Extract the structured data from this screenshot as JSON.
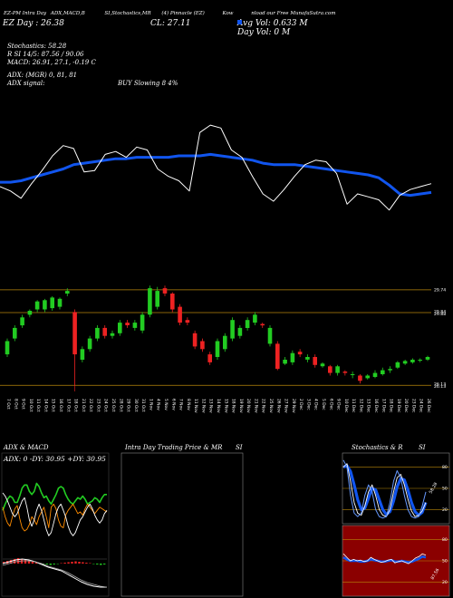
{
  "header": {
    "line1": [
      "EZ-PM Intra Day",
      "ADX,MACD,B",
      "SI,Stochastics,MR",
      "(4) Pinnacle (EZ)",
      "Kow",
      "nload our Free MunafaSutra.com"
    ],
    "line2_left": "EZ  Day : 26.38",
    "line2_mid": "CL: 27.11",
    "line2_right": "Avg Vol: 0.633 M",
    "line3_right": "Day Vol: 0   M"
  },
  "indicators": {
    "stoch": "Stochastics: 58.28",
    "rsi": "R        SI 14/5: 87.56  / 90.06",
    "macd": "MACD: 26.91, 27.1, -0.19 C",
    "adx": "ADX:                       (MGR) 0, 81, 81",
    "adx_signal": "ADX  signal:",
    "buy": "BUY Slowing 8 4%"
  },
  "colors": {
    "up": "#22cc22",
    "down": "#ee2222",
    "ma": "#1155ee",
    "price": "#ffffff",
    "level": "#b8860b",
    "stoch_bg": "#000000",
    "rsi_bg": "#8b0000"
  },
  "chart_data": [
    {
      "type": "line",
      "name": "top-overlay",
      "series": [
        {
          "values": [
            27.8,
            27.5,
            27.0,
            28.0,
            28.9,
            29.9,
            30.6,
            30.4,
            28.8,
            28.9,
            30.0,
            30.2,
            29.8,
            30.5,
            30.3,
            29.0,
            28.5,
            28.2,
            27.5,
            31.5,
            32.0,
            31.8,
            30.3,
            29.8,
            28.5,
            27.3,
            26.8,
            27.6,
            28.5,
            29.3,
            29.6,
            29.5,
            28.7,
            26.6,
            27.3,
            27.1,
            26.9,
            26.2,
            27.2,
            27.6,
            27.8,
            28.0
          ]
        },
        {
          "values": [
            28.1,
            28.1,
            28.2,
            28.4,
            28.6,
            28.8,
            29.0,
            29.3,
            29.4,
            29.5,
            29.6,
            29.7,
            29.7,
            29.8,
            29.8,
            29.8,
            29.8,
            29.9,
            29.9,
            29.9,
            30.0,
            29.9,
            29.8,
            29.7,
            29.6,
            29.4,
            29.3,
            29.3,
            29.3,
            29.2,
            29.1,
            29.0,
            28.9,
            28.8,
            28.7,
            28.6,
            28.4,
            27.9,
            27.3,
            27.2,
            27.3,
            27.4
          ]
        }
      ]
    },
    {
      "type": "candlestick",
      "name": "price",
      "ylim": [
        25.9,
        30.25
      ],
      "levels": [
        28.88,
        29.74,
        26.13
      ],
      "right_ticks": [
        "29.88",
        "29.84",
        "29.74",
        "26.13",
        "26.13"
      ],
      "x": [
        "7 Oct",
        "8 Oct",
        "9 Oct",
        "10 Oct",
        "11 Oct",
        "14 Oct",
        "15 Oct",
        "16 Oct",
        "17 Oct",
        "18 Oct",
        "21 Oct",
        "22 Oct",
        "23 Oct",
        "24 Oct",
        "25 Oct",
        "28 Oct",
        "29 Oct",
        "30 Oct",
        "31 Oct",
        "1 Nov",
        "4 Nov",
        "5 Nov",
        "6 Nov",
        "7 Nov",
        "8 Nov",
        "11 Nov",
        "12 Nov",
        "13 Nov",
        "14 Nov",
        "15 Nov",
        "18 Nov",
        "19 Nov",
        "20 Nov",
        "21 Nov",
        "22 Nov",
        "25 Nov",
        "26 Nov",
        "27 Nov",
        "29 Nov",
        "2 Dec",
        "3 Dec",
        "4 Dec",
        "5 Dec",
        "6 Dec",
        "9 Dec",
        "10 Dec",
        "11 Dec",
        "12 Dec",
        "13 Dec",
        "16 Dec",
        "17 Dec",
        "18 Dec",
        "19 Dec",
        "20 Dec",
        "23 Dec",
        "24 Dec",
        "26 Dec"
      ],
      "open": [
        27.3,
        27.9,
        28.4,
        28.8,
        29.0,
        29.0,
        29.05,
        29.1,
        29.6,
        28.9,
        27.1,
        27.5,
        27.9,
        28.3,
        28.0,
        28.1,
        28.5,
        28.3,
        28.2,
        28.8,
        29.1,
        29.8,
        29.6,
        29.1,
        28.6,
        28.1,
        27.8,
        27.3,
        27.2,
        27.5,
        27.9,
        28.0,
        28.3,
        28.5,
        28.45,
        27.7,
        27.7,
        26.95,
        27.0,
        27.4,
        27.1,
        27.2,
        26.85,
        26.85,
        26.6,
        26.65,
        26.55,
        26.5,
        26.4,
        26.45,
        26.55,
        26.7,
        26.8,
        26.95,
        27.0,
        27.1,
        27.1
      ],
      "close": [
        27.8,
        28.3,
        28.7,
        28.95,
        29.3,
        29.35,
        29.45,
        29.4,
        29.7,
        27.3,
        27.5,
        27.9,
        28.3,
        28.0,
        28.1,
        28.5,
        28.4,
        28.5,
        28.8,
        29.8,
        29.7,
        29.6,
        29.0,
        28.5,
        28.5,
        27.6,
        27.5,
        27.0,
        27.8,
        28.0,
        28.6,
        28.3,
        28.6,
        28.8,
        28.4,
        28.3,
        26.75,
        27.1,
        27.35,
        27.3,
        27.2,
        26.9,
        26.95,
        26.6,
        26.85,
        26.6,
        26.55,
        26.3,
        26.5,
        26.6,
        26.7,
        26.75,
        27.0,
        27.05,
        27.1,
        27.1,
        27.2
      ],
      "high": [
        27.9,
        28.4,
        28.8,
        29.0,
        29.35,
        29.4,
        29.5,
        29.45,
        29.8,
        29.0,
        27.6,
        28.0,
        28.4,
        28.4,
        28.2,
        28.6,
        28.6,
        28.6,
        28.9,
        29.9,
        29.85,
        29.9,
        29.65,
        29.2,
        28.7,
        28.2,
        27.9,
        27.4,
        27.9,
        28.1,
        28.7,
        28.4,
        28.7,
        28.9,
        28.5,
        28.4,
        27.8,
        27.2,
        27.45,
        27.5,
        27.3,
        27.3,
        27.0,
        26.9,
        26.9,
        26.7,
        26.65,
        26.55,
        26.55,
        26.7,
        26.8,
        26.85,
        27.05,
        27.1,
        27.15,
        27.15,
        27.25
      ],
      "low": [
        27.2,
        27.8,
        28.3,
        28.7,
        28.9,
        28.9,
        28.95,
        29.0,
        29.5,
        26.1,
        27.0,
        27.4,
        27.8,
        27.9,
        27.9,
        28.0,
        28.3,
        28.2,
        28.1,
        28.7,
        29.0,
        29.5,
        28.9,
        28.4,
        28.4,
        27.5,
        27.4,
        26.9,
        27.1,
        27.4,
        27.8,
        27.9,
        28.2,
        28.4,
        28.3,
        27.6,
        26.7,
        26.9,
        26.9,
        27.2,
        27.0,
        26.8,
        26.8,
        26.5,
        26.5,
        26.5,
        26.4,
        26.2,
        26.35,
        26.4,
        26.5,
        26.6,
        26.75,
        26.9,
        26.95,
        27.0,
        27.05
      ]
    },
    {
      "type": "line",
      "name": "adx-macd",
      "title": "ADX  & MACD",
      "readout": "ADX: 0  -DY: 30.95  +DY: 30.95",
      "series": [
        {
          "values": [
            26,
            30,
            33,
            35,
            34,
            31,
            31,
            35,
            40,
            42,
            42,
            38,
            36,
            38,
            43,
            41,
            37,
            34,
            35,
            32,
            30,
            33,
            36,
            40,
            41,
            40,
            36,
            33,
            31,
            30,
            32,
            34,
            33,
            35,
            33,
            30,
            31,
            32,
            34,
            33,
            31,
            34,
            36,
            36
          ]
        },
        {
          "values": [
            28,
            22,
            18,
            16,
            22,
            27,
            29,
            21,
            15,
            13,
            14,
            17,
            22,
            20,
            17,
            22,
            25,
            28,
            22,
            15,
            28,
            30,
            27,
            20,
            16,
            15,
            23,
            26,
            28,
            30,
            27,
            24,
            25,
            23,
            27,
            30,
            28,
            26,
            24,
            26,
            28,
            27,
            26,
            25
          ]
        },
        {
          "values": [
            37,
            35,
            32,
            28,
            24,
            22,
            24,
            28,
            32,
            34,
            28,
            20,
            16,
            20,
            26,
            30,
            26,
            20,
            14,
            10,
            12,
            18,
            24,
            28,
            30,
            26,
            22,
            16,
            12,
            10,
            12,
            16,
            20,
            22,
            25,
            28,
            30,
            27,
            23,
            20,
            18,
            20,
            24,
            26
          ]
        }
      ]
    },
    {
      "type": "bar",
      "name": "intraday",
      "title": "Intra  Day Trading Price  & MR",
      "title_right": "SI",
      "values": []
    },
    {
      "type": "line",
      "name": "stochastics",
      "title": "Stochastics & R",
      "title_right": "SI",
      "ylim": [
        0,
        100
      ],
      "tick_labels": [
        "80",
        "50",
        "20"
      ],
      "readout": "58.28",
      "series": [
        {
          "values": [
            90,
            80,
            40,
            15,
            10,
            15,
            40,
            55,
            45,
            20,
            10,
            8,
            10,
            30,
            60,
            75,
            65,
            40,
            20,
            10,
            8,
            10,
            25,
            45
          ]
        },
        {
          "values": [
            80,
            85,
            60,
            30,
            15,
            12,
            25,
            45,
            55,
            40,
            20,
            12,
            10,
            20,
            45,
            65,
            70,
            55,
            35,
            18,
            10,
            12,
            18,
            30
          ]
        },
        {
          "values": [
            80,
            82,
            74,
            55,
            34,
            20,
            22,
            36,
            50,
            48,
            34,
            20,
            13,
            17,
            32,
            52,
            64,
            62,
            48,
            30,
            17,
            12,
            16,
            30
          ]
        }
      ]
    },
    {
      "type": "line",
      "name": "rsi",
      "ylim": [
        0,
        100
      ],
      "tick_labels": [
        "80",
        "50",
        "20"
      ],
      "readout": "87.56",
      "series": [
        {
          "values": [
            60,
            55,
            50,
            52,
            50,
            51,
            49,
            50,
            55,
            52,
            50,
            48,
            49,
            51,
            52,
            47,
            49,
            50,
            48,
            46,
            50,
            54,
            56,
            60,
            58
          ]
        },
        {
          "values": [
            55,
            52,
            50,
            50,
            50,
            49,
            49,
            50,
            52,
            51,
            50,
            49,
            49,
            50,
            51,
            49,
            49,
            50,
            49,
            48,
            49,
            51,
            53,
            56,
            55
          ]
        }
      ]
    }
  ]
}
